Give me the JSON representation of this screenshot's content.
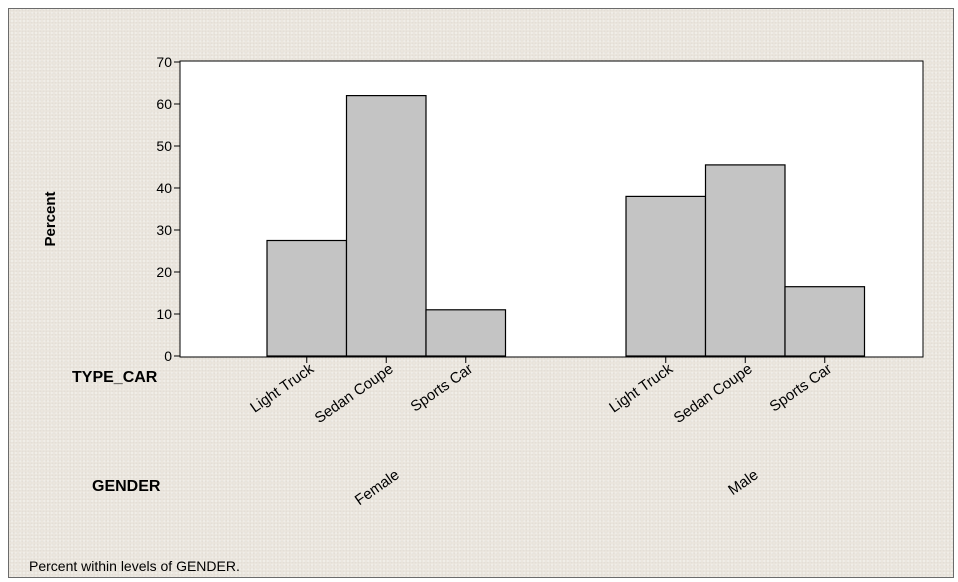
{
  "chart_data": {
    "type": "bar",
    "ylabel": "Percent",
    "ylim": [
      0,
      70
    ],
    "yticks": [
      0,
      10,
      20,
      30,
      40,
      50,
      60,
      70
    ],
    "grid": false,
    "bar_color": "#c4c4c4",
    "bar_edge_color": "#000000",
    "row_labels": [
      "TYPE_CAR",
      "GENDER"
    ],
    "groups": [
      {
        "name": "Female",
        "categories": [
          "Light Truck",
          "Sedan Coupe",
          "Sports Car"
        ],
        "values": [
          27.5,
          62,
          11
        ]
      },
      {
        "name": "Male",
        "categories": [
          "Light Truck",
          "Sedan Coupe",
          "Sports Car"
        ],
        "values": [
          38,
          45.5,
          16.5
        ]
      }
    ],
    "footnote": "Percent within levels of GENDER."
  }
}
